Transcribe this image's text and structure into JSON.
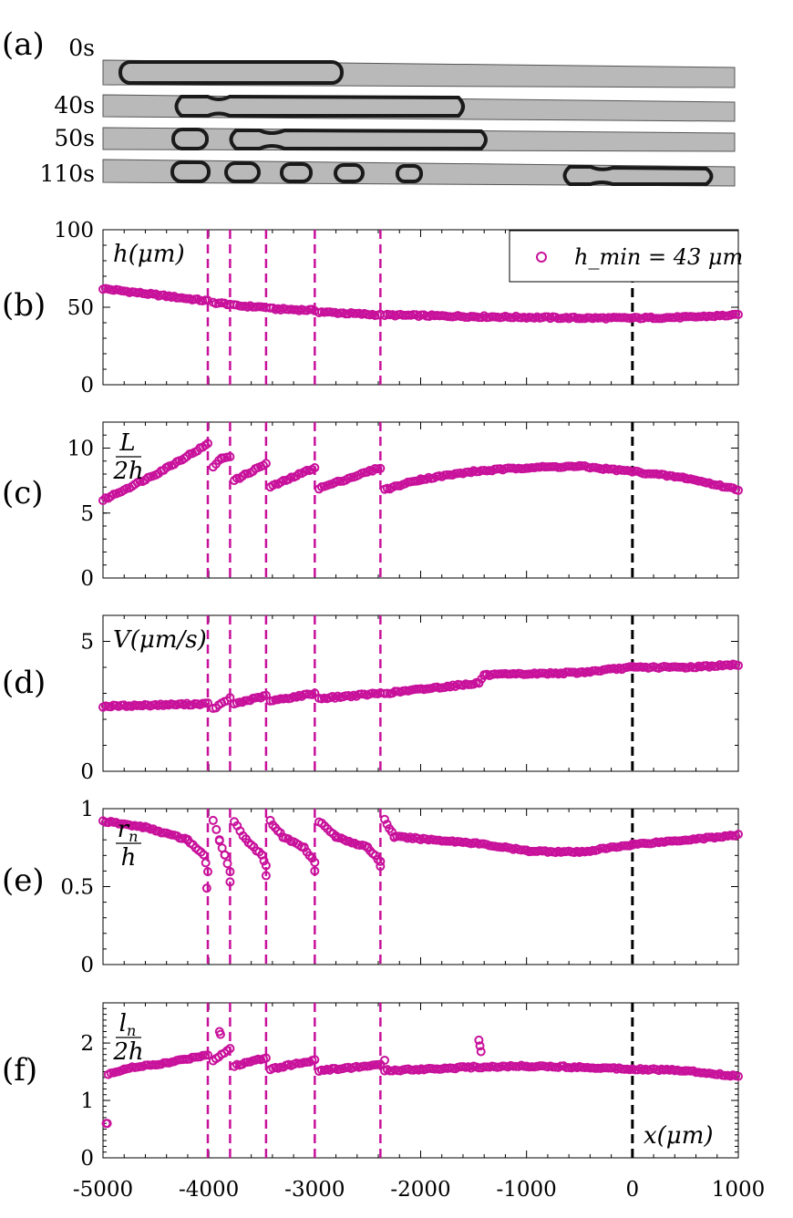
{
  "panel_a": {
    "letter": "(a)",
    "times": [
      "0s",
      "40s",
      "50s",
      "110s"
    ]
  },
  "colors": {
    "series": "#c8119b",
    "reference": "#000000",
    "tube_fill": "#b9b9b9",
    "droplet": "#1a1a1a"
  },
  "shared_x_tick_labels": [
    "-5000",
    "-4000",
    "-3000",
    "-2000",
    "-1000",
    "0",
    "1000"
  ],
  "chart_data": [
    {
      "panel": "(b)",
      "type": "scatter",
      "ylabel": "h(μm)",
      "ylim": [
        0,
        100
      ],
      "ytick_labels": [
        "0",
        "50",
        "100"
      ],
      "legend": "h_min = 43 μm",
      "legend_position": "top-right",
      "xlim": [
        -5000,
        1000
      ],
      "vlines": [
        -4010,
        -3800,
        -3460,
        -3000,
        -2380
      ],
      "ref_line": 0,
      "segments": [
        {
          "x": [
            -5000,
            -4500,
            -4010
          ],
          "y": [
            62,
            58,
            54
          ]
        },
        {
          "x": [
            -3960,
            -3800
          ],
          "y": [
            53,
            52
          ]
        },
        {
          "x": [
            -3760,
            -3460
          ],
          "y": [
            51,
            50
          ]
        },
        {
          "x": [
            -3420,
            -3000
          ],
          "y": [
            49,
            48
          ]
        },
        {
          "x": [
            -2960,
            -2380
          ],
          "y": [
            47,
            45
          ]
        },
        {
          "x": [
            -2340,
            -1500,
            -500,
            0,
            500,
            1000
          ],
          "y": [
            45,
            44,
            43,
            43,
            43.5,
            45
          ]
        }
      ]
    },
    {
      "panel": "(c)",
      "type": "scatter",
      "ylabel": "L/2h",
      "ylabel_num": "L",
      "ylabel_den": "2h",
      "ylim": [
        0,
        12
      ],
      "ytick_labels": [
        "0",
        "5",
        "10"
      ],
      "xlim": [
        -5000,
        1000
      ],
      "vlines": [
        -4010,
        -3800,
        -3460,
        -3000,
        -2380
      ],
      "ref_line": 0,
      "segments": [
        {
          "x": [
            -5000,
            -4500,
            -4010
          ],
          "y": [
            6.0,
            8.0,
            10.3
          ]
        },
        {
          "x": [
            -3960,
            -3880,
            -3800
          ],
          "y": [
            8.6,
            9.2,
            9.4
          ]
        },
        {
          "x": [
            -3760,
            -3460
          ],
          "y": [
            7.5,
            8.8
          ]
        },
        {
          "x": [
            -3420,
            -3000
          ],
          "y": [
            7.0,
            8.5
          ]
        },
        {
          "x": [
            -2960,
            -2380
          ],
          "y": [
            6.9,
            8.5
          ]
        },
        {
          "x": [
            -2340,
            -2000,
            -1500,
            -1000,
            -500,
            0,
            500,
            1000
          ],
          "y": [
            6.8,
            7.6,
            8.2,
            8.5,
            8.6,
            8.2,
            7.7,
            6.8
          ]
        }
      ]
    },
    {
      "panel": "(d)",
      "type": "scatter",
      "ylabel": "V(μm/s)",
      "ylim": [
        0,
        6
      ],
      "ytick_labels": [
        "0",
        "5"
      ],
      "xlim": [
        -5000,
        1000
      ],
      "vlines": [
        -4010,
        -3800,
        -3460,
        -3000,
        -2380
      ],
      "ref_line": 0,
      "segments": [
        {
          "x": [
            -5000,
            -4010
          ],
          "y": [
            2.5,
            2.6
          ]
        },
        {
          "x": [
            -3960,
            -3800
          ],
          "y": [
            2.4,
            2.8
          ]
        },
        {
          "x": [
            -3760,
            -3460
          ],
          "y": [
            2.6,
            2.9
          ]
        },
        {
          "x": [
            -3420,
            -3000
          ],
          "y": [
            2.7,
            3.0
          ]
        },
        {
          "x": [
            -2960,
            -2380
          ],
          "y": [
            2.8,
            3.0
          ]
        },
        {
          "x": [
            -2340,
            -1450,
            -1400,
            -500,
            0,
            500,
            1000
          ],
          "y": [
            3.0,
            3.4,
            3.7,
            3.8,
            4.0,
            4.0,
            4.1
          ]
        }
      ]
    },
    {
      "panel": "(e)",
      "type": "scatter",
      "ylabel": "r_n/h",
      "ylabel_num": "r",
      "ylabel_sub": "n",
      "ylabel_den": "h",
      "ylim": [
        0,
        1
      ],
      "ytick_labels": [
        "0",
        "0.5",
        "1"
      ],
      "xlim": [
        -5000,
        1000
      ],
      "vlines": [
        -4010,
        -3800,
        -3460,
        -3000,
        -2380
      ],
      "ref_line": 0,
      "segments": [
        {
          "x": [
            -5000,
            -4600,
            -4200,
            -4050,
            -4010
          ],
          "y": [
            0.92,
            0.88,
            0.8,
            0.7,
            0.6
          ]
        },
        {
          "x": [
            -3960,
            -3900,
            -3850,
            -3800
          ],
          "y": [
            0.93,
            0.8,
            0.7,
            0.6
          ]
        },
        {
          "x": [
            -3760,
            -3650,
            -3500,
            -3460
          ],
          "y": [
            0.92,
            0.8,
            0.7,
            0.64
          ]
        },
        {
          "x": [
            -3420,
            -3300,
            -3100,
            -3000
          ],
          "y": [
            0.92,
            0.82,
            0.75,
            0.66
          ]
        },
        {
          "x": [
            -2960,
            -2800,
            -2500,
            -2380
          ],
          "y": [
            0.92,
            0.82,
            0.75,
            0.66
          ]
        },
        {
          "x": [
            -2340,
            -2250,
            -1500,
            -1000,
            -500,
            0,
            500,
            1000
          ],
          "y": [
            0.93,
            0.82,
            0.78,
            0.73,
            0.72,
            0.77,
            0.8,
            0.83
          ]
        }
      ],
      "outliers": {
        "x": [
          -4020,
          -3800,
          -3460,
          -3000,
          -2380
        ],
        "y": [
          0.49,
          0.53,
          0.57,
          0.6,
          0.63
        ]
      }
    },
    {
      "panel": "(f)",
      "type": "scatter",
      "ylabel": "l_n/2h",
      "ylabel_num": "l",
      "ylabel_sub": "n",
      "ylabel_den": "2h",
      "xlabel": "x(μm)",
      "ylim": [
        0,
        2.7
      ],
      "ytick_labels": [
        "0",
        "1",
        "2"
      ],
      "xlim": [
        -5000,
        1000
      ],
      "vlines": [
        -4010,
        -3800,
        -3460,
        -3000,
        -2380
      ],
      "ref_line": 0,
      "segments": [
        {
          "x": [
            -4950,
            -4800,
            -4400,
            -4010
          ],
          "y": [
            1.45,
            1.55,
            1.65,
            1.8
          ]
        },
        {
          "x": [
            -3960,
            -3800
          ],
          "y": [
            1.7,
            1.9
          ]
        },
        {
          "x": [
            -3760,
            -3460
          ],
          "y": [
            1.6,
            1.75
          ]
        },
        {
          "x": [
            -3420,
            -3000
          ],
          "y": [
            1.55,
            1.7
          ]
        },
        {
          "x": [
            -2960,
            -2380
          ],
          "y": [
            1.52,
            1.62
          ]
        },
        {
          "x": [
            -2340,
            -1500,
            -1000,
            -500,
            0,
            500,
            1000
          ],
          "y": [
            1.52,
            1.58,
            1.6,
            1.58,
            1.55,
            1.52,
            1.42
          ]
        }
      ],
      "outliers": {
        "x": [
          -4970,
          -4960,
          -3900,
          -3890,
          -1450,
          -1440,
          -1430,
          -2340
        ],
        "y": [
          0.6,
          0.6,
          2.2,
          2.15,
          2.05,
          1.95,
          1.85,
          1.7
        ]
      }
    }
  ]
}
